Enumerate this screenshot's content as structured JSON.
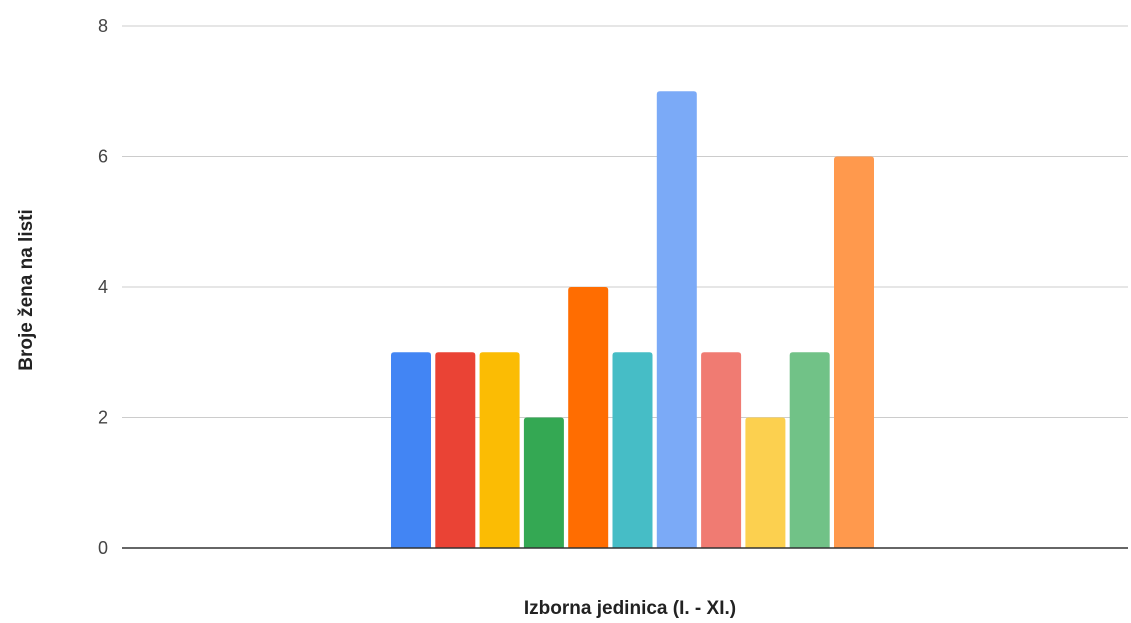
{
  "chart_data": {
    "type": "bar",
    "title": "",
    "xlabel": "Izborna jedinica (I. - XI.)",
    "ylabel": "Broje žena na listi",
    "ylim": [
      0,
      8
    ],
    "yticks": [
      0,
      2,
      4,
      6,
      8
    ],
    "grid": true,
    "legend": "none",
    "series": [
      {
        "value": 3,
        "color": "#4285f4"
      },
      {
        "value": 3,
        "color": "#ea4335"
      },
      {
        "value": 3,
        "color": "#fbbc04"
      },
      {
        "value": 2,
        "color": "#34a853"
      },
      {
        "value": 4,
        "color": "#ff6d01"
      },
      {
        "value": 3,
        "color": "#46bdc6"
      },
      {
        "value": 7,
        "color": "#7baaf7"
      },
      {
        "value": 3,
        "color": "#f07b72"
      },
      {
        "value": 2,
        "color": "#fcd04f"
      },
      {
        "value": 3,
        "color": "#71c287"
      },
      {
        "value": 6,
        "color": "#ff994d"
      }
    ]
  }
}
